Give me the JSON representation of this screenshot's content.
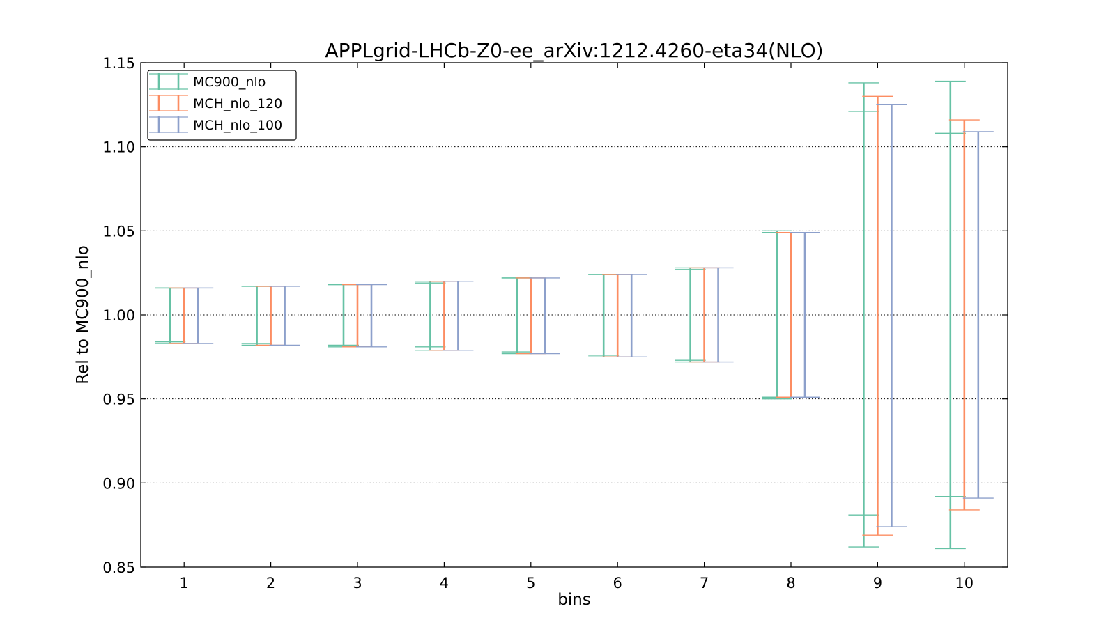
{
  "chart_data": {
    "type": "errorbar",
    "title": "APPLgrid-LHCb-Z0-ee_arXiv:1212.4260-eta34(NLO)",
    "xlabel": "bins",
    "ylabel": "Rel to MC900_nlo",
    "xlim": [
      0.5,
      10.5
    ],
    "ylim": [
      0.85,
      1.15
    ],
    "x_ticks": [
      "1",
      "2",
      "3",
      "4",
      "5",
      "6",
      "7",
      "8",
      "9",
      "10"
    ],
    "y_ticks": [
      "0.85",
      "0.90",
      "0.95",
      "1.00",
      "1.05",
      "1.10",
      "1.15"
    ],
    "grid": "horizontal dotted",
    "legend_position": "top-left",
    "categories": [
      1,
      2,
      3,
      4,
      5,
      6,
      7,
      8,
      9,
      10
    ],
    "series": [
      {
        "name": "MC900_nlo",
        "color": "#66c2a5",
        "outer_low": [
          0.983,
          0.982,
          0.981,
          0.979,
          0.977,
          0.975,
          0.972,
          0.95,
          0.862,
          0.861
        ],
        "outer_high": [
          1.016,
          1.017,
          1.018,
          1.02,
          1.022,
          1.024,
          1.028,
          1.05,
          1.138,
          1.139
        ],
        "inner_low": [
          0.984,
          0.983,
          0.982,
          0.981,
          0.978,
          0.976,
          0.973,
          0.951,
          0.881,
          0.892
        ],
        "inner_high": [
          1.016,
          1.017,
          1.018,
          1.019,
          1.022,
          1.024,
          1.027,
          1.049,
          1.121,
          1.108
        ]
      },
      {
        "name": "MCH_nlo_120",
        "color": "#fc8d62",
        "outer_low": [
          0.983,
          0.982,
          0.981,
          0.979,
          0.977,
          0.975,
          0.972,
          0.951,
          0.869,
          0.884
        ],
        "outer_high": [
          1.016,
          1.017,
          1.018,
          1.02,
          1.022,
          1.024,
          1.028,
          1.049,
          1.13,
          1.116
        ]
      },
      {
        "name": "MCH_nlo_100",
        "color": "#8da0cb",
        "outer_low": [
          0.983,
          0.982,
          0.981,
          0.979,
          0.977,
          0.975,
          0.972,
          0.951,
          0.874,
          0.891
        ],
        "outer_high": [
          1.016,
          1.017,
          1.018,
          1.02,
          1.022,
          1.024,
          1.028,
          1.049,
          1.125,
          1.109
        ]
      }
    ]
  }
}
